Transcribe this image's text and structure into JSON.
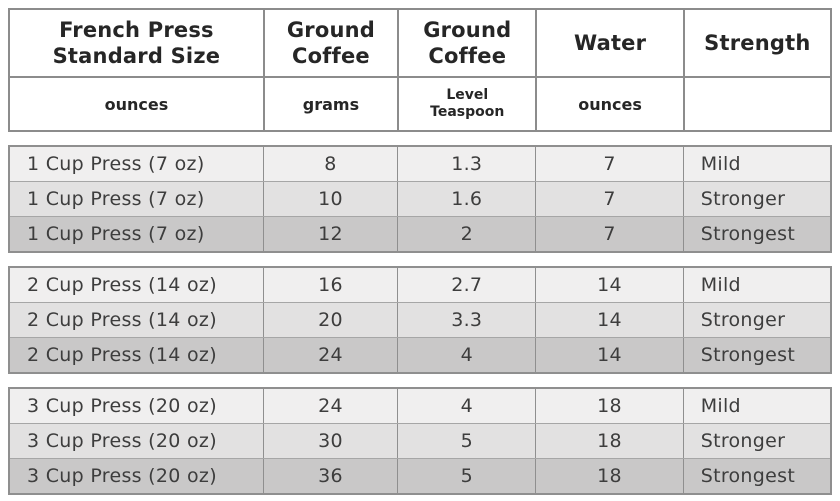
{
  "colors": {
    "header_bg": "#ffffff",
    "header_border": "#8c8c8c",
    "group_border": "#8f8f8f",
    "row_separator": "#a6a6a6",
    "row_mild_bg": "#f0efef",
    "row_stronger_bg": "#e2e1e1",
    "row_strongest_bg": "#c9c8c8",
    "header_text": "#262626",
    "data_text": "#3d3d3d"
  },
  "chart_data": {
    "type": "table",
    "title": "French Press Standard Size",
    "columns": [
      {
        "header": "French Press\nStandard Size",
        "unit": "ounces"
      },
      {
        "header": "Ground\nCoffee",
        "unit": "grams"
      },
      {
        "header": "Ground\nCoffee",
        "unit": "Level\nTeaspoon"
      },
      {
        "header": "Water",
        "unit": "ounces"
      },
      {
        "header": "Strength",
        "unit": ""
      }
    ],
    "groups": [
      {
        "rows": [
          [
            "1 Cup Press (7 oz)",
            8,
            1.3,
            7,
            "Mild"
          ],
          [
            "1 Cup Press (7 oz)",
            10,
            1.6,
            7,
            "Stronger"
          ],
          [
            "1 Cup Press (7 oz)",
            12,
            2,
            7,
            "Strongest"
          ]
        ]
      },
      {
        "rows": [
          [
            "2 Cup Press (14 oz)",
            16,
            2.7,
            14,
            "Mild"
          ],
          [
            "2 Cup Press (14 oz)",
            20,
            3.3,
            14,
            "Stronger"
          ],
          [
            "2 Cup Press (14 oz)",
            24,
            4,
            14,
            "Strongest"
          ]
        ]
      },
      {
        "rows": [
          [
            "3 Cup Press (20 oz)",
            24,
            4,
            18,
            "Mild"
          ],
          [
            "3 Cup Press (20 oz)",
            30,
            5,
            18,
            "Stronger"
          ],
          [
            "3 Cup Press (20 oz)",
            36,
            5,
            18,
            "Strongest"
          ]
        ]
      }
    ]
  }
}
